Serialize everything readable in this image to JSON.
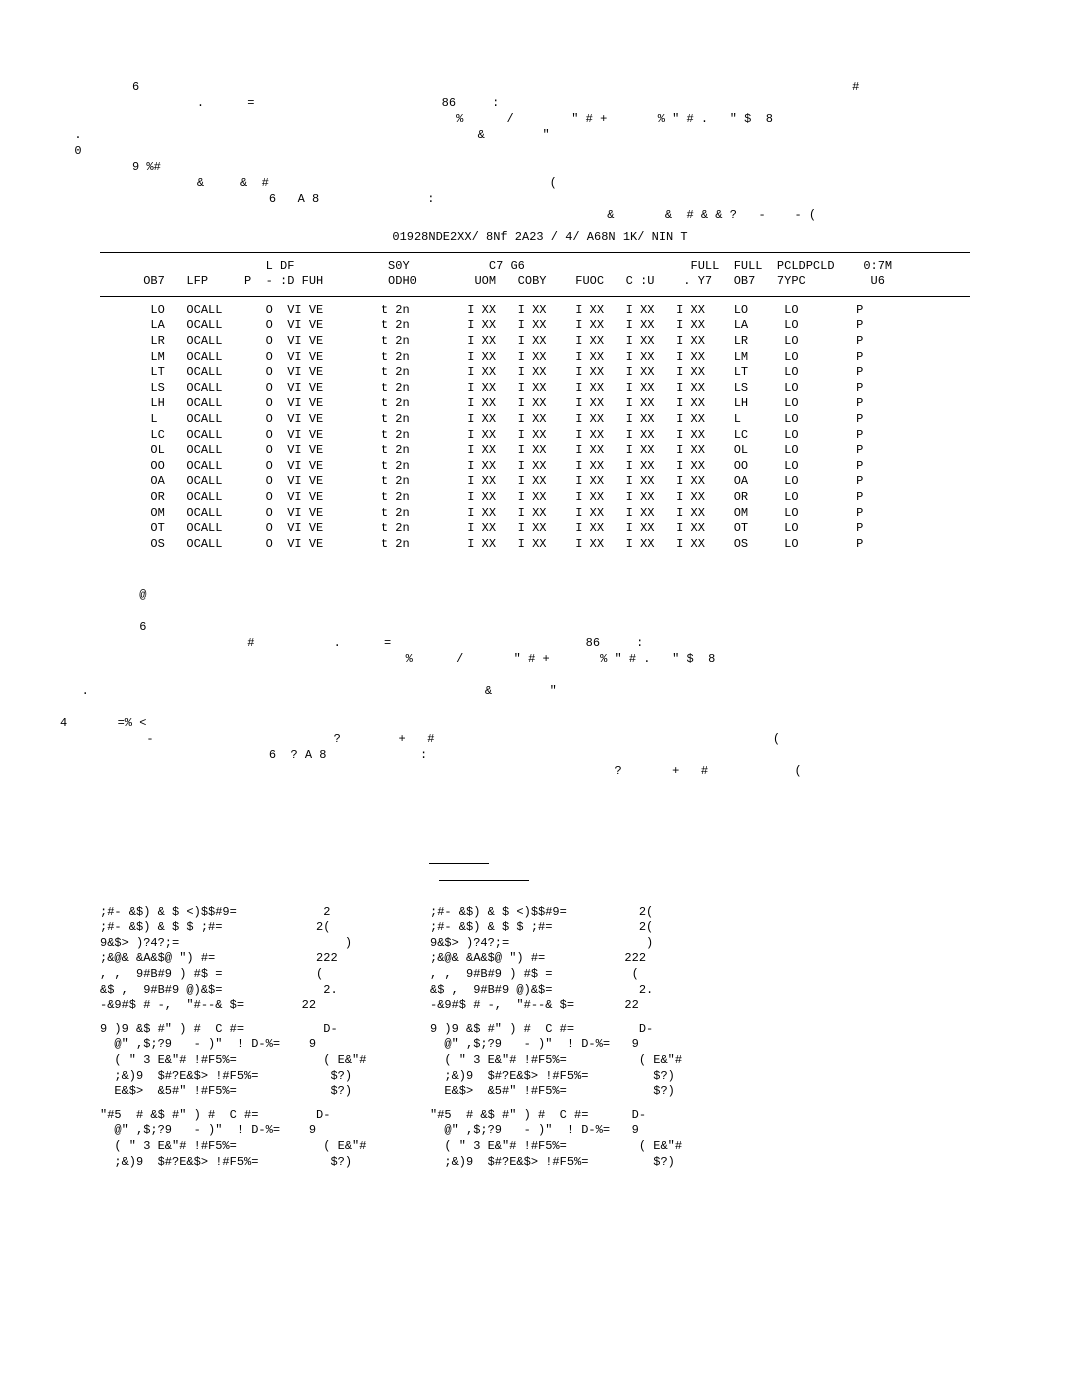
{
  "block1": {
    "l1": "          6                                                                                                   #",
    "l2": "                   .      =                          86     :",
    "l3": "                                                       %      /        \" # +       % \" # .   \" $  8",
    "l4": "  .                                                       &        \"",
    "l5": "  0",
    "l6": "          9 %#",
    "l7": "                   &     &  #                                       (",
    "l8": "                             6   A 8               :",
    "l9": "                                                                            &       &  # & & ?   -    - ("
  },
  "center_title": "01928NDE2XX/ 8Nf 2A23 / 4/ A68N  1K/ NIN T",
  "table": {
    "head1": "                       L DF             S0Y           C7 G6                       FULL  FULL  PCLDPCLD    0:7M",
    "head2": "      OB7   LFP     P  - :D FUH         ODH0        UOM   COBY    FUOC   C :U    . Y7   OB7   7YPC         U6",
    "rows": [
      "       LO   OCALL      O  VI VE        t 2n        I XX   I XX    I XX   I XX   I XX    LO     LO        P",
      "       LA   OCALL      O  VI VE        t 2n        I XX   I XX    I XX   I XX   I XX    LA     LO        P",
      "       LR   OCALL      O  VI VE        t 2n        I XX   I XX    I XX   I XX   I XX    LR     LO        P",
      "       LM   OCALL      O  VI VE        t 2n        I XX   I XX    I XX   I XX   I XX    LM     LO        P",
      "       LT   OCALL      O  VI VE        t 2n        I XX   I XX    I XX   I XX   I XX    LT     LO        P",
      "       LS   OCALL      O  VI VE        t 2n        I XX   I XX    I XX   I XX   I XX    LS     LO        P",
      "       LH   OCALL      O  VI VE        t 2n        I XX   I XX    I XX   I XX   I XX    LH     LO        P",
      "       L    OCALL      O  VI VE        t 2n        I XX   I XX    I XX   I XX   I XX    L      LO        P",
      "       LC   OCALL      O  VI VE        t 2n        I XX   I XX    I XX   I XX   I XX    LC     LO        P",
      "       OL   OCALL      O  VI VE        t 2n        I XX   I XX    I XX   I XX   I XX    OL     LO        P",
      "       OO   OCALL      O  VI VE        t 2n        I XX   I XX    I XX   I XX   I XX    OO     LO        P",
      "       OA   OCALL      O  VI VE        t 2n        I XX   I XX    I XX   I XX   I XX    OA     LO        P",
      "       OR   OCALL      O  VI VE        t 2n        I XX   I XX    I XX   I XX   I XX    OR     LO        P",
      "       OM   OCALL      O  VI VE        t 2n        I XX   I XX    I XX   I XX   I XX    OM     LO        P",
      "       OT   OCALL      O  VI VE        t 2n        I XX   I XX    I XX   I XX   I XX    OT     LO        P",
      "       OS   OCALL      O  VI VE        t 2n        I XX   I XX    I XX   I XX   I XX    OS     LO        P"
    ]
  },
  "block2": {
    "l1": "           @",
    "l2": "",
    "l3": "           6",
    "l4": "                          #           .      =                           86     :",
    "l5": "                                                %      /       \" # +       % \" # .   \" $  8",
    "l6": "",
    "l7": "   .                                                       &        \"",
    "l8": "",
    "l9": "4       =% <",
    "l10": "            -                         ?        +   #                                               (",
    "l11": "                             6  ? A 8             :",
    "l12": "                                                                             ?       +   #            ("
  },
  "pairs": [
    {
      "l": ";#- &$) & $ <)$$#9=            2",
      "r": ";#- &$) & $ <)$$#9=          2("
    },
    {
      "l": ";#- &$) & $ $ ;#=             2(",
      "r": ";#- &$) & $ $ ;#=            2("
    },
    {
      "l": "9&$> )?4?;=                       )",
      "r": "9&$> )?4?;=                   )"
    },
    {
      "l": ";&@& &A&$@ \") #=              222",
      "r": ";&@& &A&$@ \") #=           222"
    },
    {
      "l": ", ,  9#B#9 ) #$ =             (",
      "r": ", ,  9#B#9 ) #$ =           ("
    },
    {
      "l": "&$ ,  9#B#9 @)&$=              2.",
      "r": "&$ ,  9#B#9 @)&$=            2."
    },
    {
      "l": "-&9#$ # -,  \"#--& $=        22",
      "r": "-&9#$ # -,  \"#--& $=       22"
    }
  ],
  "group2": {
    "head_l": "9 )9 &$ #\" ) #  C #=           D-",
    "head_r": "9 )9 &$ #\" ) #  C #=         D-",
    "rows": [
      {
        "l": "  @\" ,$;?9   - )\"  ! D-%=    9",
        "r": "  @\" ,$;?9   - )\"  ! D-%=   9"
      },
      {
        "l": "  ( \" 3 E&\"# !#F5%=            ( E&\"#",
        "r": "  ( \" 3 E&\"# !#F5%=          ( E&\"#"
      },
      {
        "l": "  ;&)9  $#?E&$> !#F5%=          $?)",
        "r": "  ;&)9  $#?E&$> !#F5%=         $?)"
      },
      {
        "l": "  E&$>  &5#\" !#F5%=             $?)",
        "r": "  E&$>  &5#\" !#F5%=            $?)"
      }
    ]
  },
  "group3": {
    "head_l": "\"#5  # &$ #\" ) #  C #=        D-",
    "head_r": "\"#5  # &$ #\" ) #  C #=      D-",
    "rows": [
      {
        "l": "  @\" ,$;?9   - )\"  ! D-%=    9",
        "r": "  @\" ,$;?9   - )\"  ! D-%=   9"
      },
      {
        "l": "  ( \" 3 E&\"# !#F5%=            ( E&\"#",
        "r": "  ( \" 3 E&\"# !#F5%=          ( E&\"#"
      },
      {
        "l": "  ;&)9  $#?E&$> !#F5%=          $?)",
        "r": "  ;&)9  $#?E&$> !#F5%=         $?)"
      }
    ]
  }
}
